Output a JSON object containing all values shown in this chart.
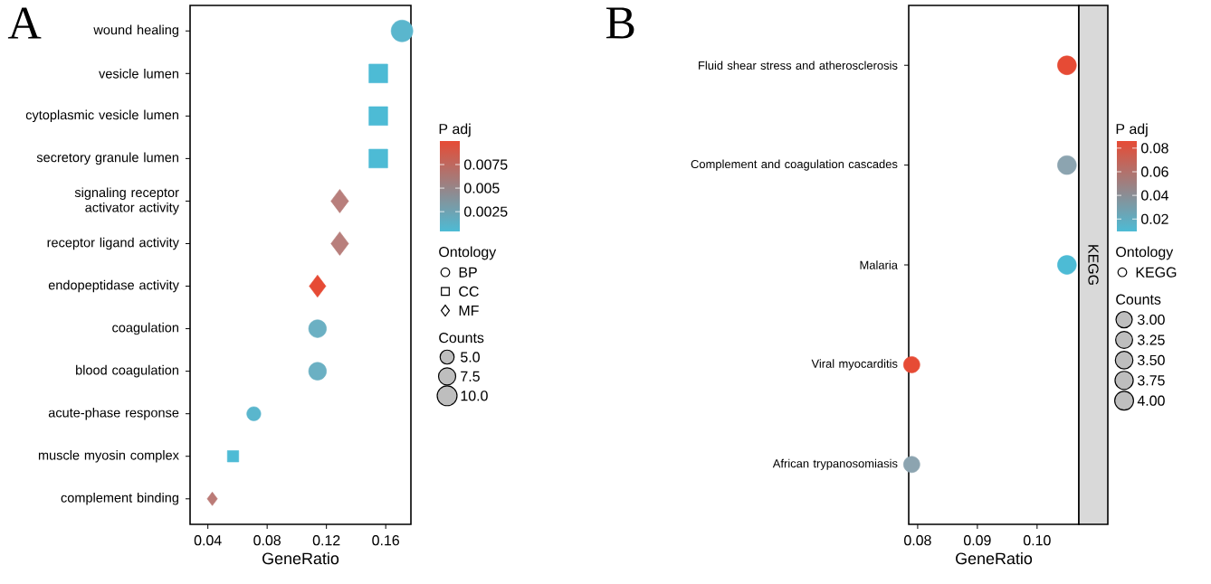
{
  "chart_data": [
    {
      "type": "bubble",
      "title": "A",
      "orientation": "horizontal",
      "xlabel": "GeneRatio",
      "xlim": [
        0.028,
        0.177
      ],
      "xticks": [
        0.04,
        0.08,
        0.12,
        0.16
      ],
      "categories": [
        "wound healing",
        "vesicle lumen",
        "cytoplasmic vesicle lumen",
        "secretory granule lumen",
        "signaling receptor activator activity",
        "receptor ligand activity",
        "endopeptidase activity",
        "coagulation",
        "blood coagulation",
        "acute-phase response",
        "muscle myosin complex",
        "complement binding"
      ],
      "series": [
        {
          "name": "BP",
          "marker": "circle",
          "values": [
            0.171,
            null,
            null,
            null,
            null,
            null,
            null,
            0.114,
            0.114,
            0.071,
            null,
            null
          ],
          "sizes": [
            12,
            null,
            null,
            null,
            null,
            null,
            null,
            8,
            8,
            5,
            null,
            null
          ],
          "cvalues": [
            0.0012,
            null,
            null,
            null,
            null,
            null,
            null,
            0.0022,
            0.0022,
            0.0012,
            null,
            null
          ],
          "colors": [
            "#5ab6cd",
            null,
            null,
            null,
            null,
            null,
            null,
            "#6bb0c3",
            "#6bb0c3",
            "#5ab6cd",
            null,
            null
          ]
        },
        {
          "name": "CC",
          "marker": "square",
          "values": [
            null,
            0.155,
            0.155,
            0.155,
            null,
            null,
            null,
            null,
            null,
            null,
            0.057,
            null
          ],
          "sizes": [
            null,
            11,
            11,
            11,
            null,
            null,
            null,
            null,
            null,
            null,
            4,
            null
          ],
          "cvalues": [
            null,
            0.0004,
            0.0004,
            0.0004,
            null,
            null,
            null,
            null,
            null,
            null,
            0.0004,
            null
          ],
          "colors": [
            null,
            "#4dbbd5",
            "#4dbbd5",
            "#4dbbd5",
            null,
            null,
            null,
            null,
            null,
            null,
            "#4dbbd5",
            null
          ]
        },
        {
          "name": "MF",
          "marker": "diamond",
          "values": [
            null,
            null,
            null,
            null,
            0.129,
            0.129,
            0.114,
            null,
            null,
            null,
            null,
            0.043
          ],
          "sizes": [
            null,
            null,
            null,
            null,
            9,
            9,
            8,
            null,
            null,
            null,
            null,
            3
          ],
          "cvalues": [
            null,
            null,
            null,
            null,
            0.007,
            0.007,
            0.01,
            null,
            null,
            null,
            null,
            0.0072
          ],
          "colors": [
            null,
            null,
            null,
            null,
            "#b87f7c",
            "#b87f7c",
            "#e64b35",
            null,
            null,
            null,
            null,
            "#bb7b77"
          ]
        }
      ],
      "clabel": "P adj",
      "clim": [
        0.0004,
        0.01
      ],
      "cticks": [
        0.0025,
        0.005,
        0.0075
      ],
      "legend_title": "Ontology",
      "legend": "right",
      "size_legend": [
        {
          "value": 5,
          "label": "5.0"
        },
        {
          "value": 7.5,
          "label": "7.5"
        },
        {
          "value": 10,
          "label": "10.0"
        }
      ],
      "annotations": [
        "Counts"
      ]
    },
    {
      "type": "bubble",
      "title": "B",
      "orientation": "horizontal",
      "xlabel": "GeneRatio",
      "xlim": [
        0.0785,
        0.107
      ],
      "xticks": [
        0.08,
        0.09,
        {
          "value": 0.1,
          "label": "0.10"
        }
      ],
      "categories": [
        "Fluid shear stress and atherosclerosis",
        "Complement and coagulation cascades",
        "Malaria",
        "Viral myocarditis",
        "African trypanosomiasis"
      ],
      "series": [
        {
          "name": "KEGG",
          "marker": "circle",
          "values": [
            0.105,
            0.105,
            0.105,
            0.079,
            0.079
          ],
          "sizes": [
            4,
            4,
            4,
            3,
            3
          ],
          "cvalues": [
            0.086,
            0.04,
            0.0095,
            0.086,
            0.04
          ],
          "colors": [
            "#e64b35",
            "#8ca4b0",
            "#4dbbd5",
            "#e64b35",
            "#8ca4b0"
          ]
        }
      ],
      "clabel": "P adj",
      "clim": [
        0.0095,
        0.086
      ],
      "cticks": [
        0.02,
        0.04,
        0.06,
        0.08
      ],
      "legend_title": "Ontology",
      "legend": "right",
      "size_legend": [
        {
          "value": 3,
          "label": "3.00"
        },
        {
          "value": 3.25,
          "label": "3.25"
        },
        {
          "value": 3.5,
          "label": "3.50"
        },
        {
          "value": 3.75,
          "label": "3.75"
        },
        {
          "value": 4,
          "label": "4.00"
        }
      ],
      "annotations": [
        "Counts",
        "KEGG"
      ]
    }
  ]
}
